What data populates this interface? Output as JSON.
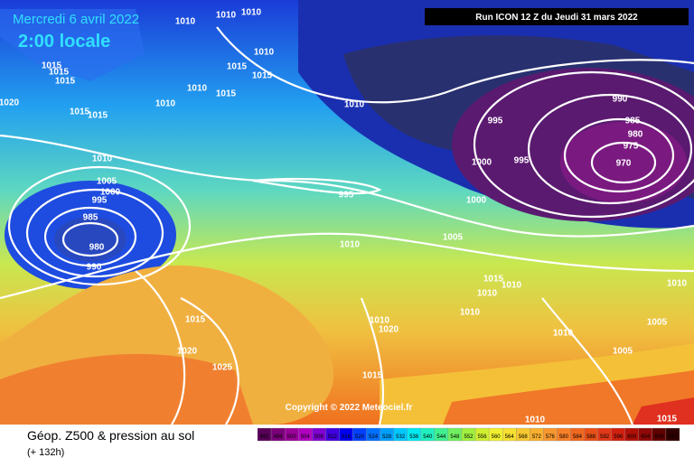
{
  "header": {
    "date": "Mercredi 6 avril 2022",
    "time": "2:00 locale",
    "run": "Run ICON 12 Z du Jeudi 31 mars 2022"
  },
  "copyright": "Copyright © 2022 Meteociel.fr",
  "footer": {
    "title": "Géop. Z500 & pression au sol",
    "lead": "(+ 132h)"
  },
  "colorbar": {
    "labels": [
      492,
      496,
      500,
      504,
      508,
      512,
      516,
      520,
      524,
      528,
      532,
      536,
      540,
      544,
      548,
      552,
      556,
      560,
      564,
      568,
      572,
      576,
      580,
      584,
      588,
      592,
      596,
      600,
      604,
      608,
      612
    ]
  },
  "isobars": {
    "labels": [
      "1010",
      "1010",
      "1010",
      "1010",
      "1015",
      "1015",
      "1010",
      "1015",
      "1015",
      "1015",
      "1015",
      "1020",
      "1015",
      "1015",
      "1010",
      "1010",
      "990",
      "995",
      "985",
      "980",
      "975",
      "970",
      "995",
      "1000",
      "1005",
      "1000",
      "995",
      "985",
      "980",
      "990",
      "995",
      "1000",
      "1005",
      "1010",
      "1015",
      "1010",
      "1010",
      "1010",
      "1010",
      "1020",
      "1015",
      "1020",
      "1025",
      "1015",
      "1010",
      "1005",
      "1005",
      "1010",
      "1010",
      "1015",
      "1010"
    ]
  }
}
